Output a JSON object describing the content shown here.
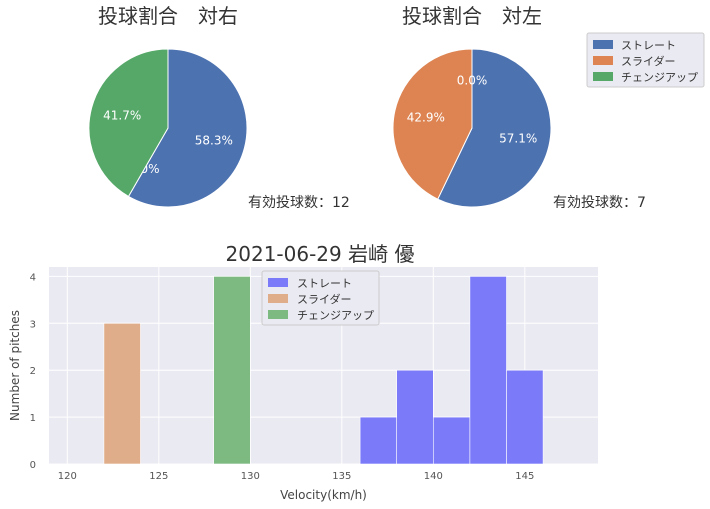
{
  "colors": {
    "straight": "#4c72b0",
    "slider": "#dd8452",
    "changeup": "#55a868",
    "hist_straight": "#7b7bfa",
    "hist_slider": "#e0ad8a",
    "hist_changeup": "#7cba82",
    "plot_bg": "#eaeaf2",
    "grid": "#ffffff"
  },
  "chart_data": [
    {
      "type": "pie",
      "title": "投球割合　対右",
      "labels": [
        "ストレート",
        "スライダー",
        "チェンジアップ"
      ],
      "values": [
        7,
        0,
        5
      ],
      "percent_labels": [
        "58.3%",
        "0.0%",
        "41.7%"
      ],
      "annotation": "有効投球数：12"
    },
    {
      "type": "pie",
      "title": "投球割合　対左",
      "labels": [
        "ストレート",
        "スライダー",
        "チェンジアップ"
      ],
      "values": [
        4,
        3,
        0
      ],
      "percent_labels": [
        "57.1%",
        "42.9%",
        "0.0%"
      ],
      "annotation": "有効投球数：7",
      "legend": {
        "placement": "top-right",
        "entries": [
          "ストレート",
          "スライダー",
          "チェンジアップ"
        ]
      }
    },
    {
      "type": "bar",
      "subtype": "histogram",
      "title": "2021-06-29 岩崎 優",
      "xlabel": "Velocity(km/h)",
      "ylabel": "Number of pitches",
      "xlim": [
        119,
        149
      ],
      "ylim": [
        0,
        4.2
      ],
      "xticks": [
        120,
        125,
        130,
        135,
        140,
        145
      ],
      "yticks": [
        0,
        1,
        2,
        3,
        4
      ],
      "grid": true,
      "legend": {
        "placement": "top-center",
        "entries": [
          "ストレート",
          "スライダー",
          "チェンジアップ"
        ]
      },
      "series": [
        {
          "name": "ストレート",
          "bins": [
            {
              "x0": 136,
              "x1": 138,
              "count": 1
            },
            {
              "x0": 138,
              "x1": 140,
              "count": 2
            },
            {
              "x0": 140,
              "x1": 142,
              "count": 1
            },
            {
              "x0": 142,
              "x1": 144,
              "count": 4
            },
            {
              "x0": 144,
              "x1": 146,
              "count": 2
            }
          ]
        },
        {
          "name": "スライダー",
          "bins": [
            {
              "x0": 122,
              "x1": 124,
              "count": 3
            }
          ]
        },
        {
          "name": "チェンジアップ",
          "bins": [
            {
              "x0": 128,
              "x1": 130,
              "count": 4
            }
          ]
        }
      ]
    }
  ]
}
